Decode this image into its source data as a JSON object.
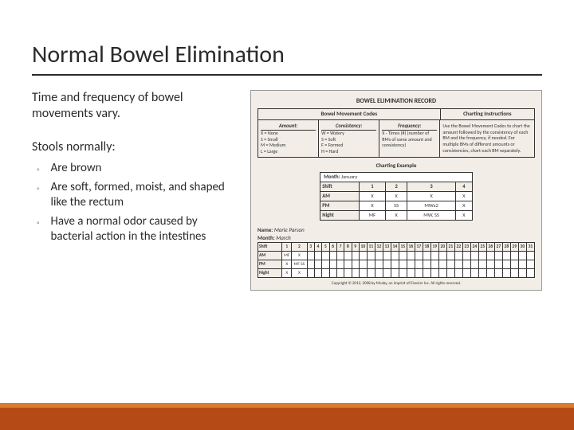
{
  "title": "Normal Bowel Elimination",
  "intro": "Time and frequency of bowel movements vary.",
  "list_heading": "Stools normally:",
  "bullets": [
    "Are brown",
    "Are soft, formed, moist, and shaped like the rectum",
    "Have a normal odor caused by bacterial action in the intestines"
  ],
  "record": {
    "title": "BOWEL ELIMINATION RECORD",
    "codes_heading": "Bowel Movement Codes",
    "instr_heading": "Charting Instructions",
    "cols": {
      "amount": "Amount:",
      "consistency": "Consistency:",
      "frequency": "Frequency:"
    },
    "amount": [
      "X = None",
      "S = Small",
      "M = Medium",
      "L = Large"
    ],
    "consistency": [
      "W = Watery",
      "S = Soft",
      "F = Formed",
      "H = Hard"
    ],
    "frequency_text": "X - Times (#) (number of BMs of same amount and consistency)",
    "instructions_text": "Use the Bowel Movement Codes to chart the amount followed by the consistency of each BM and the frequency, if needed. For multiple BMs of different amounts or consistencies, chart each BM separately.",
    "example_heading": "Charting Example",
    "example_month_label": "Month:",
    "example_month": "January",
    "example": {
      "headers": [
        "Shift",
        "1",
        "2",
        "3",
        "4"
      ],
      "rows": [
        [
          "AM",
          "X",
          "X",
          "X",
          "X"
        ],
        [
          "PM",
          "X",
          "SS",
          "MWx2",
          "X"
        ],
        [
          "Night",
          "MF",
          "X",
          "MW, SS",
          "X"
        ]
      ]
    },
    "name_label": "Name:",
    "name_value": "Marie Parson",
    "month_label": "Month:",
    "month_value": "March",
    "grid": {
      "head_label": "Shift",
      "days": [
        "1",
        "2",
        "3",
        "4",
        "5",
        "6",
        "7",
        "8",
        "9",
        "10",
        "11",
        "12",
        "13",
        "14",
        "15",
        "16",
        "17",
        "18",
        "19",
        "20",
        "21",
        "22",
        "23",
        "24",
        "25",
        "26",
        "27",
        "28",
        "29",
        "30",
        "31"
      ],
      "rows": [
        {
          "label": "AM",
          "cells": [
            "MF",
            "X",
            "",
            "",
            "",
            "",
            "",
            "",
            "",
            "",
            "",
            "",
            "",
            "",
            "",
            "",
            "",
            "",
            "",
            "",
            "",
            "",
            "",
            "",
            "",
            "",
            "",
            "",
            "",
            "",
            ""
          ]
        },
        {
          "label": "PM",
          "cells": [
            "X",
            "MF SS",
            "",
            "",
            "",
            "",
            "",
            "",
            "",
            "",
            "",
            "",
            "",
            "",
            "",
            "",
            "",
            "",
            "",
            "",
            "",
            "",
            "",
            "",
            "",
            "",
            "",
            "",
            "",
            "",
            ""
          ]
        },
        {
          "label": "Night",
          "cells": [
            "X",
            "X",
            "",
            "",
            "",
            "",
            "",
            "",
            "",
            "",
            "",
            "",
            "",
            "",
            "",
            "",
            "",
            "",
            "",
            "",
            "",
            "",
            "",
            "",
            "",
            "",
            "",
            "",
            "",
            "",
            ""
          ]
        }
      ]
    },
    "copyright": "Copyright © 2012, 2008 by Mosby, an imprint of Elsevier Inc. All rights reserved."
  },
  "colors": {
    "bar_main": "#b54a17",
    "bar_accent": "#d97d2e",
    "card_bg": "#f2ede6"
  }
}
